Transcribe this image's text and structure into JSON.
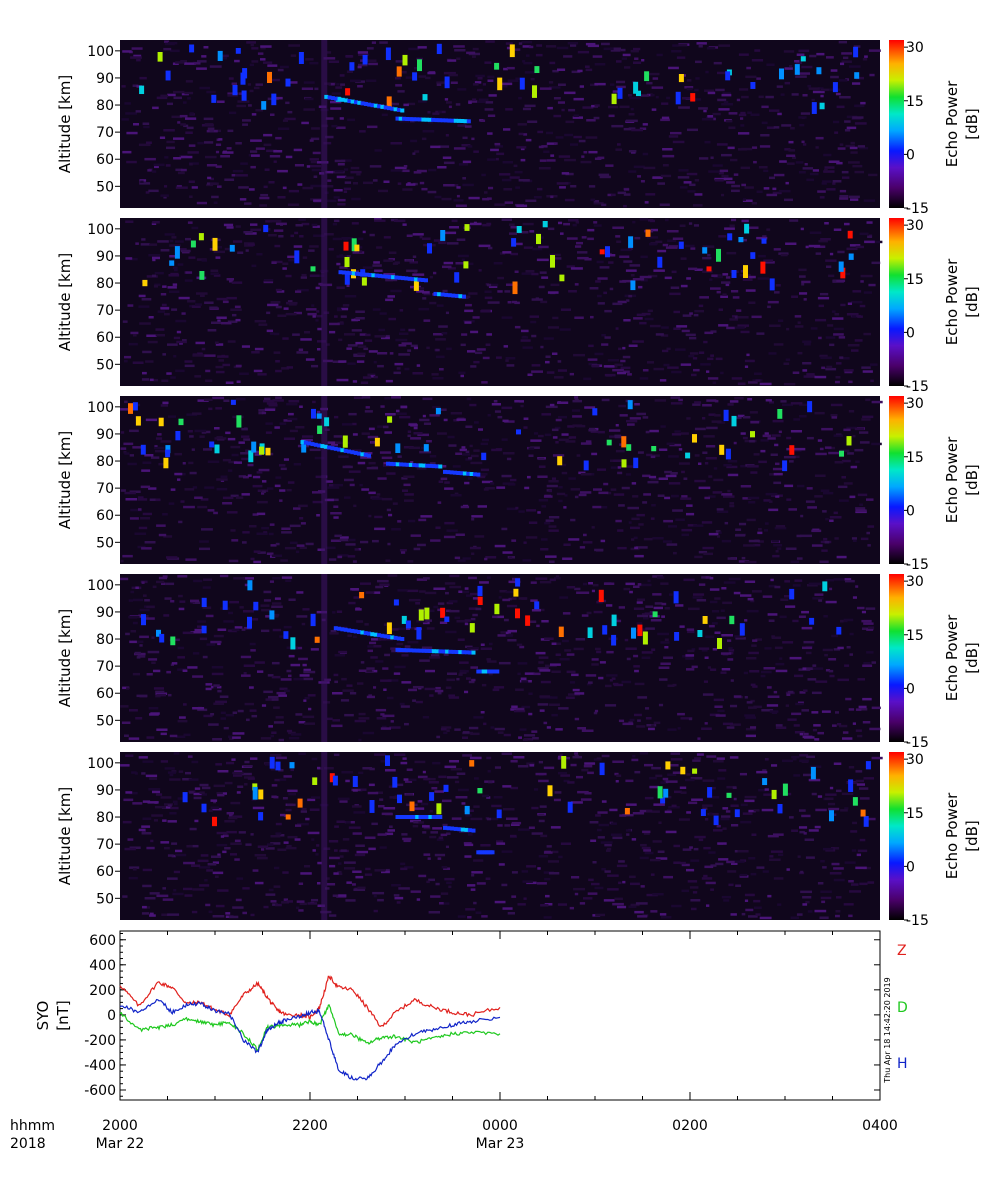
{
  "chart_data": [
    {
      "type": "heatmap",
      "ylabel": "Altitude [km]",
      "y_ticks": [
        50,
        60,
        70,
        80,
        90,
        100
      ],
      "ylim": [
        42,
        104
      ],
      "colorbar": {
        "label": "Echo Power",
        "unit": "[dB]",
        "ticks": [
          30,
          15,
          0,
          -15
        ],
        "range": [
          -15,
          32
        ]
      },
      "echo_layers": [
        {
          "start_hour": 2.15,
          "end_hour": 2.95,
          "alt_start": 83,
          "alt_end": 78
        },
        {
          "start_hour": 2.9,
          "end_hour": 3.65,
          "alt_start": 75,
          "alt_end": 74
        }
      ]
    },
    {
      "type": "heatmap",
      "ylabel": "Altitude [km]",
      "y_ticks": [
        50,
        60,
        70,
        80,
        90,
        100
      ],
      "ylim": [
        42,
        104
      ],
      "colorbar": {
        "label": "Echo Power",
        "unit": "[dB]",
        "ticks": [
          30,
          15,
          0,
          -15
        ],
        "range": [
          -15,
          32
        ]
      },
      "echo_layers": [
        {
          "start_hour": 2.3,
          "end_hour": 3.2,
          "alt_start": 84,
          "alt_end": 81
        },
        {
          "start_hour": 3.3,
          "end_hour": 3.6,
          "alt_start": 76,
          "alt_end": 75
        }
      ]
    },
    {
      "type": "heatmap",
      "ylabel": "Altitude [km]",
      "y_ticks": [
        50,
        60,
        70,
        80,
        90,
        100
      ],
      "ylim": [
        42,
        104
      ],
      "colorbar": {
        "label": "Echo Power",
        "unit": "[dB]",
        "ticks": [
          30,
          15,
          0,
          -15
        ],
        "range": [
          -15,
          32
        ]
      },
      "echo_layers": [
        {
          "start_hour": 1.9,
          "end_hour": 2.6,
          "alt_start": 87,
          "alt_end": 82
        },
        {
          "start_hour": 2.8,
          "end_hour": 3.35,
          "alt_start": 79,
          "alt_end": 78
        },
        {
          "start_hour": 3.4,
          "end_hour": 3.75,
          "alt_start": 76,
          "alt_end": 75
        }
      ]
    },
    {
      "type": "heatmap",
      "ylabel": "Altitude [km]",
      "y_ticks": [
        50,
        60,
        70,
        80,
        90,
        100
      ],
      "ylim": [
        42,
        104
      ],
      "colorbar": {
        "label": "Echo Power",
        "unit": "[dB]",
        "ticks": [
          30,
          15,
          0,
          -15
        ],
        "range": [
          -15,
          32
        ]
      },
      "echo_layers": [
        {
          "start_hour": 2.25,
          "end_hour": 2.95,
          "alt_start": 84,
          "alt_end": 80
        },
        {
          "start_hour": 2.9,
          "end_hour": 3.7,
          "alt_start": 76,
          "alt_end": 75
        },
        {
          "start_hour": 3.75,
          "end_hour": 3.95,
          "alt_start": 68,
          "alt_end": 68
        }
      ]
    },
    {
      "type": "heatmap",
      "ylabel": "Altitude [km]",
      "y_ticks": [
        50,
        60,
        70,
        80,
        90,
        100
      ],
      "ylim": [
        42,
        104
      ],
      "colorbar": {
        "label": "Echo Power",
        "unit": "[dB]",
        "ticks": [
          30,
          15,
          0,
          -15
        ],
        "range": [
          -15,
          32
        ]
      },
      "echo_layers": [
        {
          "start_hour": 2.9,
          "end_hour": 3.35,
          "alt_start": 80,
          "alt_end": 80
        },
        {
          "start_hour": 3.4,
          "end_hour": 3.7,
          "alt_start": 76,
          "alt_end": 75
        },
        {
          "start_hour": 3.75,
          "end_hour": 3.9,
          "alt_start": 67,
          "alt_end": 67
        }
      ]
    },
    {
      "type": "line",
      "ylabel": "SYO",
      "yunit": "[nT]",
      "ylim": [
        -680,
        670
      ],
      "y_ticks": [
        600,
        400,
        200,
        0,
        -200,
        -400,
        -600
      ],
      "x_hours_since_2000": [
        0,
        0.2,
        0.4,
        0.55,
        0.7,
        0.85,
        1.0,
        1.15,
        1.3,
        1.45,
        1.55,
        1.65,
        1.75,
        1.9,
        2.0,
        2.1,
        2.2,
        2.3,
        2.45,
        2.6,
        2.75,
        2.9,
        3.1,
        3.3,
        3.5,
        3.7,
        4.0
      ],
      "series": [
        {
          "name": "Z",
          "color": "#e0201c",
          "values": [
            240,
            70,
            260,
            220,
            90,
            100,
            40,
            0,
            160,
            250,
            140,
            40,
            0,
            0,
            -20,
            60,
            310,
            220,
            200,
            60,
            -100,
            20,
            120,
            60,
            20,
            0,
            60
          ]
        },
        {
          "name": "D",
          "color": "#1ec81e",
          "values": [
            20,
            -120,
            -100,
            -80,
            -30,
            -60,
            -80,
            -60,
            -150,
            -280,
            -100,
            -90,
            -80,
            -80,
            -50,
            -80,
            80,
            -150,
            -160,
            -230,
            -180,
            -170,
            -220,
            -190,
            -150,
            -140,
            -150
          ]
        },
        {
          "name": "H",
          "color": "#1024c8",
          "values": [
            80,
            20,
            130,
            20,
            80,
            90,
            30,
            10,
            -200,
            -300,
            -120,
            -70,
            -40,
            -10,
            20,
            30,
            -200,
            -440,
            -510,
            -510,
            -380,
            -240,
            -150,
            -120,
            -80,
            -50,
            -20
          ]
        }
      ],
      "timestamp": "Thu Apr 18 14:42:20 2019"
    }
  ],
  "x_axis": {
    "ticks": [
      "2000",
      "2200",
      "0000",
      "0200",
      "0400"
    ],
    "row_label": "hhmm",
    "year_label": "2018",
    "dates": [
      "Mar 22",
      "Mar 23"
    ]
  }
}
